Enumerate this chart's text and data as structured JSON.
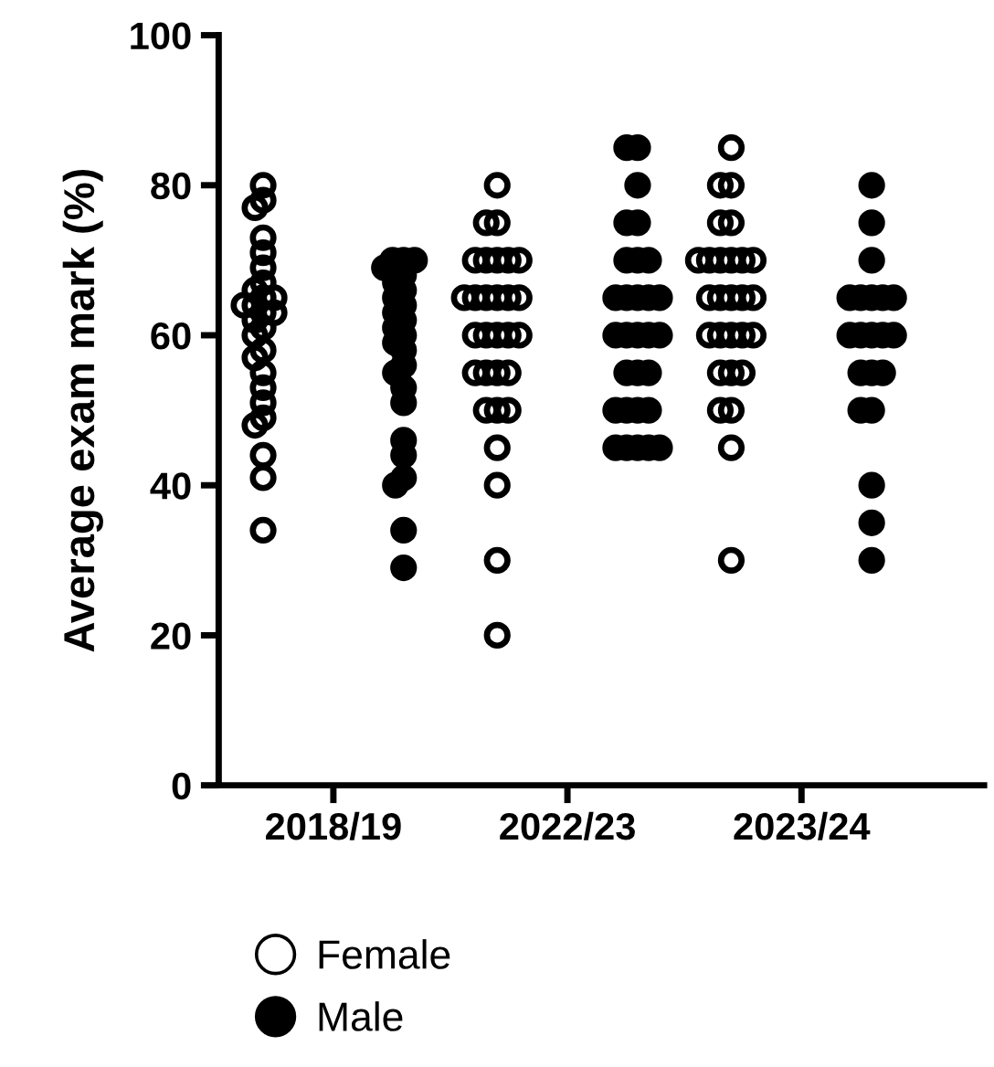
{
  "chart_data": {
    "type": "scatter",
    "ylabel": "Average exam mark (%)",
    "categories": [
      "2018/19",
      "2022/23",
      "2023/24"
    ],
    "ylim": [
      0,
      100
    ],
    "yticks": [
      0,
      20,
      40,
      60,
      80,
      100
    ],
    "grid": false,
    "legend": "bottom",
    "marker": "circle",
    "series": [
      {
        "name": "Female",
        "color": "#000000",
        "x": [
          "2018/19",
          "2018/19",
          "2018/19",
          "2018/19",
          "2018/19",
          "2018/19",
          "2018/19",
          "2018/19",
          "2018/19",
          "2018/19",
          "2018/19",
          "2018/19",
          "2018/19",
          "2018/19",
          "2018/19",
          "2018/19",
          "2018/19",
          "2018/19",
          "2018/19",
          "2018/19",
          "2018/19",
          "2018/19",
          "2018/19",
          "2018/19",
          "2018/19",
          "2018/19",
          "2018/19",
          "2022/23",
          "2022/23",
          "2022/23",
          "2022/23",
          "2022/23",
          "2022/23",
          "2022/23",
          "2022/23",
          "2022/23",
          "2022/23",
          "2022/23",
          "2022/23",
          "2022/23",
          "2022/23",
          "2022/23",
          "2022/23",
          "2022/23",
          "2022/23",
          "2022/23",
          "2022/23",
          "2022/23",
          "2022/23",
          "2022/23",
          "2022/23",
          "2022/23",
          "2022/23",
          "2022/23",
          "2022/23",
          "2022/23",
          "2022/23",
          "2023/24",
          "2023/24",
          "2023/24",
          "2023/24",
          "2023/24",
          "2023/24",
          "2023/24",
          "2023/24",
          "2023/24",
          "2023/24",
          "2023/24",
          "2023/24",
          "2023/24",
          "2023/24",
          "2023/24",
          "2023/24",
          "2023/24",
          "2023/24",
          "2023/24",
          "2023/24",
          "2023/24",
          "2023/24",
          "2023/24",
          "2023/24",
          "2023/24",
          "2023/24",
          "2023/24",
          "2023/24"
        ],
        "values": [
          80,
          78,
          77,
          73,
          71,
          69,
          67,
          66,
          65,
          65,
          64,
          64,
          63,
          63,
          62,
          61,
          60,
          58,
          57,
          55,
          53,
          51,
          49,
          48,
          44,
          41,
          34,
          80,
          75,
          75,
          70,
          70,
          70,
          70,
          70,
          65,
          65,
          65,
          65,
          65,
          65,
          60,
          60,
          60,
          60,
          60,
          55,
          55,
          55,
          55,
          50,
          50,
          50,
          45,
          40,
          30,
          20,
          85,
          80,
          80,
          75,
          75,
          70,
          70,
          70,
          70,
          70,
          70,
          65,
          65,
          65,
          65,
          65,
          60,
          60,
          60,
          60,
          60,
          55,
          55,
          55,
          50,
          50,
          45,
          30
        ]
      },
      {
        "name": "Male",
        "color": "#000000",
        "x": [
          "2018/19",
          "2018/19",
          "2018/19",
          "2018/19",
          "2018/19",
          "2018/19",
          "2018/19",
          "2018/19",
          "2018/19",
          "2018/19",
          "2018/19",
          "2018/19",
          "2018/19",
          "2018/19",
          "2018/19",
          "2018/19",
          "2018/19",
          "2018/19",
          "2018/19",
          "2018/19",
          "2018/19",
          "2018/19",
          "2018/19",
          "2018/19",
          "2018/19",
          "2022/23",
          "2022/23",
          "2022/23",
          "2022/23",
          "2022/23",
          "2022/23",
          "2022/23",
          "2022/23",
          "2022/23",
          "2022/23",
          "2022/23",
          "2022/23",
          "2022/23",
          "2022/23",
          "2022/23",
          "2022/23",
          "2022/23",
          "2022/23",
          "2022/23",
          "2022/23",
          "2022/23",
          "2022/23",
          "2022/23",
          "2022/23",
          "2022/23",
          "2022/23",
          "2022/23",
          "2022/23",
          "2022/23",
          "2022/23",
          "2023/24",
          "2023/24",
          "2023/24",
          "2023/24",
          "2023/24",
          "2023/24",
          "2023/24",
          "2023/24",
          "2023/24",
          "2023/24",
          "2023/24",
          "2023/24",
          "2023/24",
          "2023/24",
          "2023/24",
          "2023/24",
          "2023/24",
          "2023/24",
          "2023/24",
          "2023/24",
          "2023/24"
        ],
        "values": [
          70,
          70,
          70,
          69,
          68,
          67,
          66,
          65,
          64,
          63,
          62,
          61,
          60,
          59,
          58,
          56,
          55,
          53,
          51,
          46,
          44,
          41,
          40,
          34,
          29,
          85,
          85,
          80,
          75,
          75,
          70,
          70,
          70,
          65,
          65,
          65,
          65,
          65,
          60,
          60,
          60,
          60,
          60,
          55,
          55,
          55,
          50,
          50,
          50,
          50,
          45,
          45,
          45,
          45,
          45,
          80,
          75,
          70,
          65,
          65,
          65,
          65,
          65,
          60,
          60,
          60,
          60,
          60,
          55,
          55,
          55,
          50,
          50,
          40,
          35,
          30
        ]
      }
    ]
  }
}
